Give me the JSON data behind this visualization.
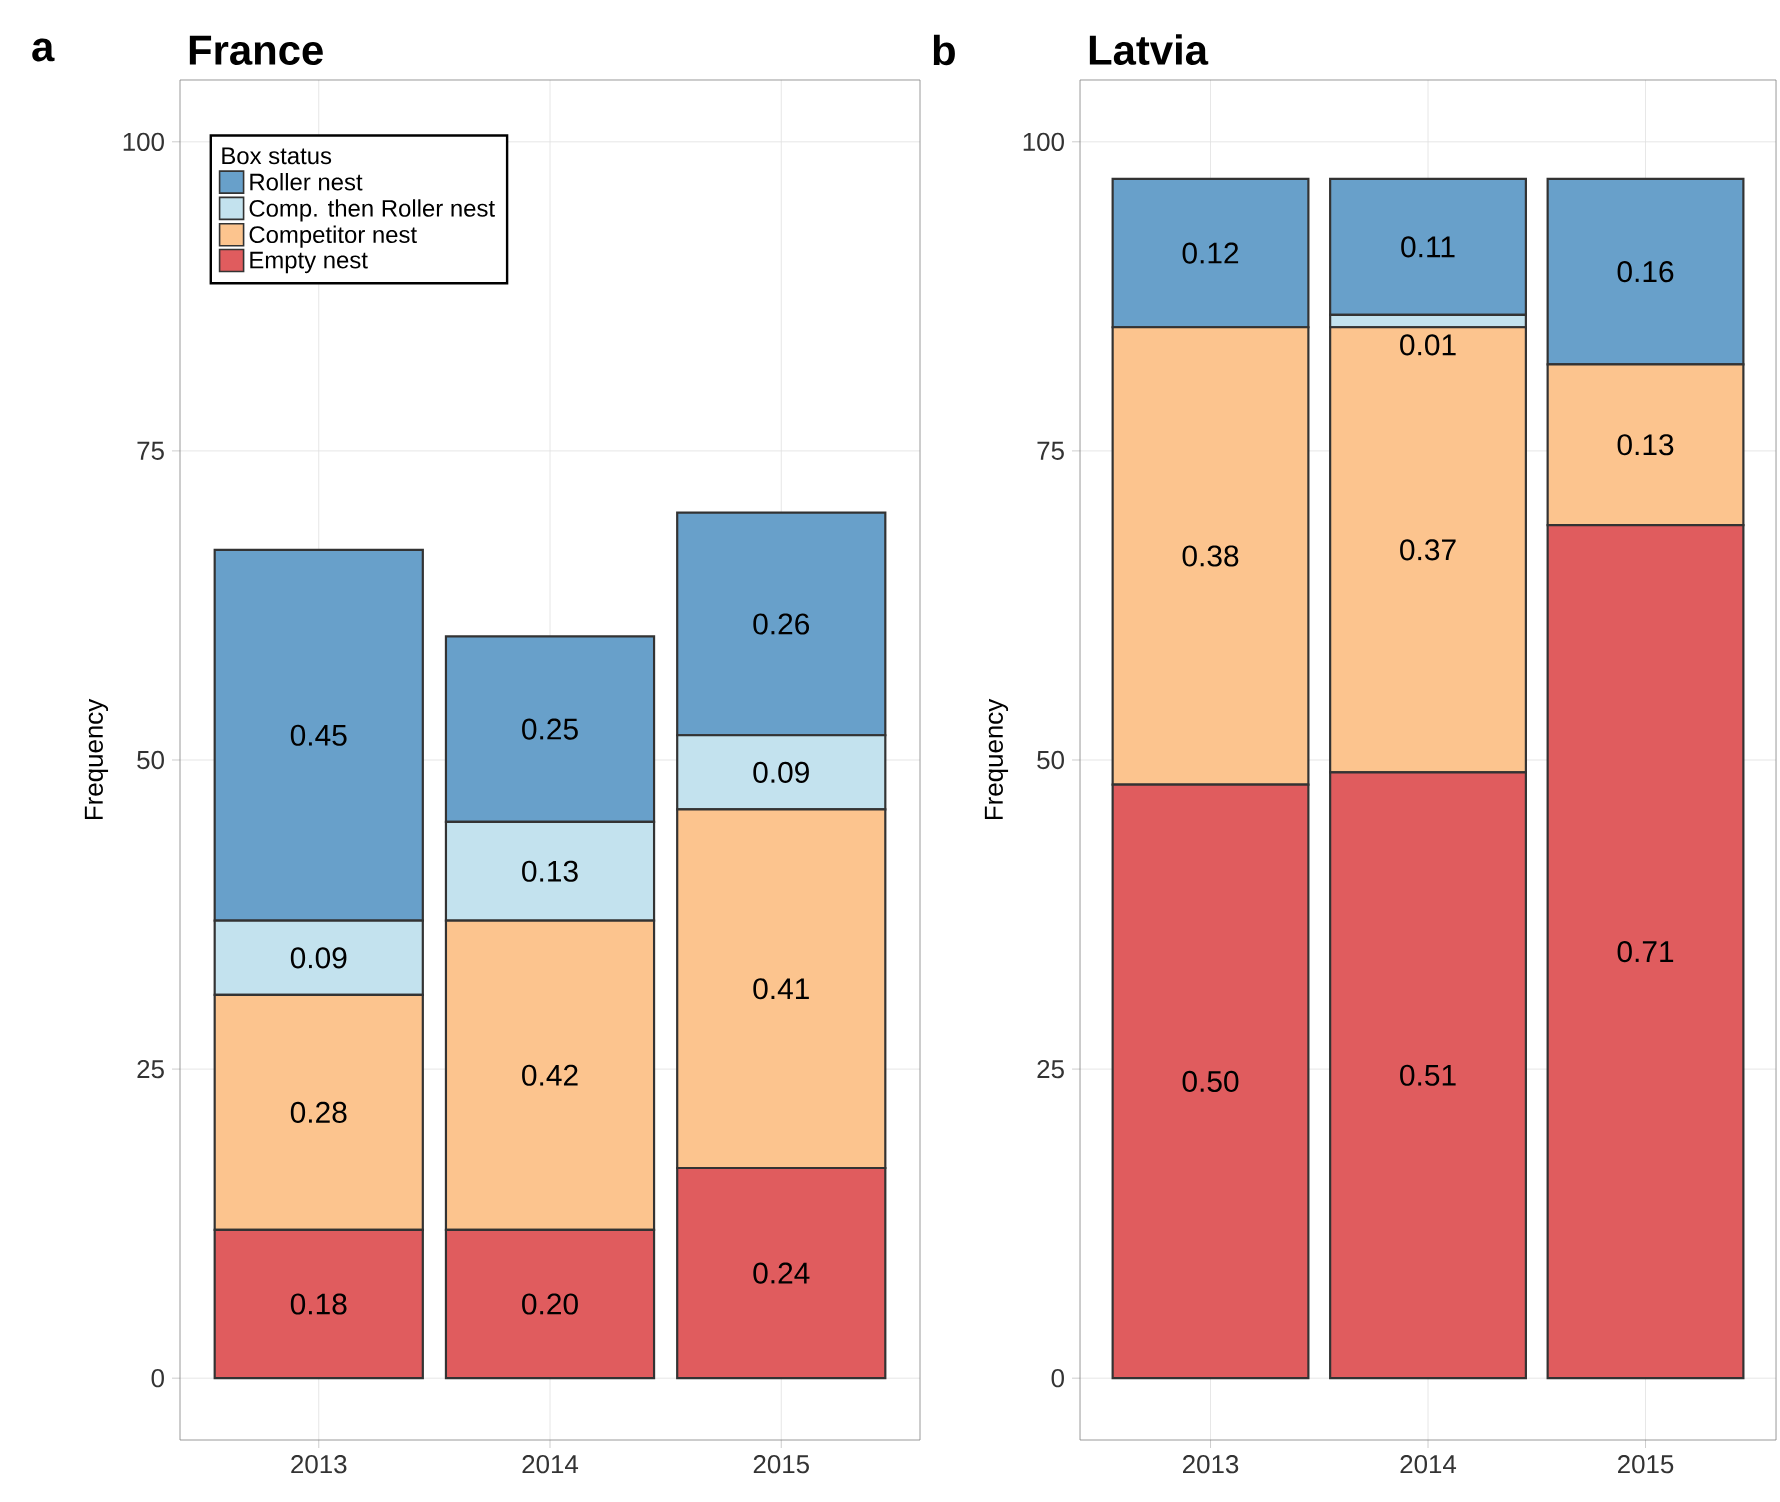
{
  "chart_data": [
    {
      "type": "bar",
      "stacked": true,
      "title": "France",
      "ylabel": "Frequency",
      "categories": [
        "2013",
        "2014",
        "2015"
      ],
      "ylim": [
        -5,
        105
      ],
      "yticks": [
        0,
        25,
        50,
        75,
        100
      ],
      "grid": true,
      "legend": "top left",
      "legend_title": "Box status",
      "annotations": [
        "a",
        "0.18",
        "0.20",
        "0.24",
        "0.28",
        "0.42",
        "0.41",
        "0.09",
        "0.13",
        "0.09",
        "0.45",
        "0.25",
        "0.26"
      ],
      "series": [
        {
          "name": "Empty nest",
          "color": "#e05c5e",
          "values": [
            12,
            12,
            17
          ]
        },
        {
          "name": "Competitor nest",
          "color": "#fcc48e",
          "values": [
            19,
            25,
            29
          ]
        },
        {
          "name": "Comp. then Roller nest",
          "color": "#c3e2ee",
          "values": [
            6,
            8,
            6
          ]
        },
        {
          "name": "Roller nest",
          "color": "#68a0ca",
          "values": [
            30,
            15,
            18
          ]
        }
      ]
    },
    {
      "type": "bar",
      "stacked": true,
      "title": "Latvia",
      "ylabel": "Frequency",
      "categories": [
        "2013",
        "2014",
        "2015"
      ],
      "ylim": [
        -5,
        105
      ],
      "yticks": [
        0,
        25,
        50,
        75,
        100
      ],
      "grid": true,
      "annotations": [
        "b",
        "0.50",
        "0.51",
        "0.71",
        "0.38",
        "0.37",
        "0.13",
        "0.01",
        "0.12",
        "0.11",
        "0.16"
      ],
      "series": [
        {
          "color": "#e05c5e",
          "values": [
            48,
            49,
            69
          ]
        },
        {
          "color": "#fcc48e",
          "values": [
            37,
            36,
            13
          ]
        },
        {
          "color": "#c3e2ee",
          "values": [
            0,
            1,
            0
          ]
        },
        {
          "color": "#68a0ca",
          "values": [
            12,
            11,
            15
          ]
        }
      ]
    }
  ]
}
